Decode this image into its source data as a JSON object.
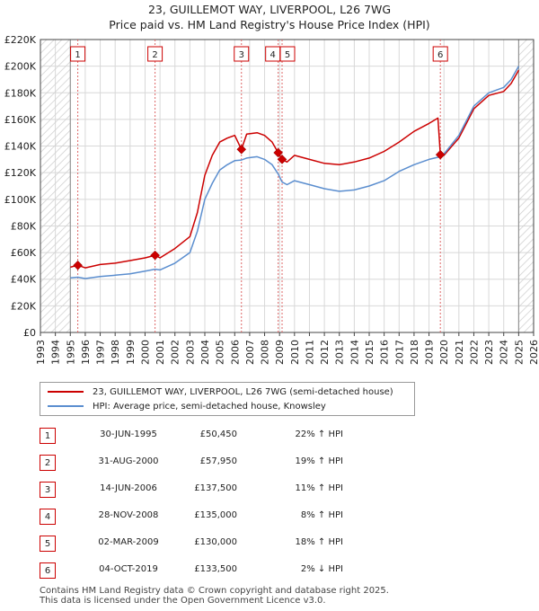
{
  "title_line1": "23, GUILLEMOT WAY, LIVERPOOL, L26 7WG",
  "title_line2": "Price paid vs. HM Land Registry's House Price Index (HPI)",
  "colors": {
    "property": "#cc0000",
    "hpi": "#5b8ecf",
    "marker_line": "#dd6666",
    "grid": "#d8d8d8"
  },
  "chart_data": {
    "type": "line",
    "xlim": [
      1993,
      2026
    ],
    "ylim": [
      0,
      220000
    ],
    "y_ticks": [
      {
        "value": 0,
        "label": "£0"
      },
      {
        "value": 20000,
        "label": "£20K"
      },
      {
        "value": 40000,
        "label": "£40K"
      },
      {
        "value": 60000,
        "label": "£60K"
      },
      {
        "value": 80000,
        "label": "£80K"
      },
      {
        "value": 100000,
        "label": "£100K"
      },
      {
        "value": 120000,
        "label": "£120K"
      },
      {
        "value": 140000,
        "label": "£140K"
      },
      {
        "value": 160000,
        "label": "£160K"
      },
      {
        "value": 180000,
        "label": "£180K"
      },
      {
        "value": 200000,
        "label": "£200K"
      },
      {
        "value": 220000,
        "label": "£220K"
      }
    ],
    "x_ticks": [
      "1993",
      "1994",
      "1995",
      "1996",
      "1997",
      "1998",
      "1999",
      "2000",
      "2001",
      "2002",
      "2003",
      "2004",
      "2005",
      "2006",
      "2007",
      "2008",
      "2009",
      "2010",
      "2011",
      "2012",
      "2013",
      "2014",
      "2015",
      "2016",
      "2017",
      "2018",
      "2019",
      "2020",
      "2021",
      "2022",
      "2023",
      "2024",
      "2025",
      "2026"
    ],
    "hatched_before": 1995.0,
    "hatched_after": 2025.0,
    "series": [
      {
        "name": "23, GUILLEMOT WAY, LIVERPOOL, L26 7WG (semi-detached house)",
        "points": [
          [
            1995.0,
            49000
          ],
          [
            1995.5,
            50450
          ],
          [
            1996,
            48500
          ],
          [
            1997,
            51000
          ],
          [
            1998,
            52000
          ],
          [
            1999,
            54000
          ],
          [
            2000,
            56000
          ],
          [
            2000.67,
            57950
          ],
          [
            2001,
            56000
          ],
          [
            2002,
            63000
          ],
          [
            2003,
            72000
          ],
          [
            2003.5,
            90000
          ],
          [
            2004,
            118000
          ],
          [
            2004.5,
            133000
          ],
          [
            2005,
            143000
          ],
          [
            2005.5,
            146000
          ],
          [
            2006,
            148000
          ],
          [
            2006.45,
            137500
          ],
          [
            2006.8,
            149000
          ],
          [
            2007.5,
            150000
          ],
          [
            2008,
            148000
          ],
          [
            2008.5,
            143000
          ],
          [
            2008.91,
            135000
          ],
          [
            2009.17,
            130000
          ],
          [
            2009.5,
            128000
          ],
          [
            2010,
            133000
          ],
          [
            2011,
            130000
          ],
          [
            2012,
            127000
          ],
          [
            2013,
            126000
          ],
          [
            2014,
            128000
          ],
          [
            2015,
            131000
          ],
          [
            2016,
            136000
          ],
          [
            2017,
            143000
          ],
          [
            2018,
            151000
          ],
          [
            2019,
            157000
          ],
          [
            2019.6,
            161000
          ],
          [
            2019.76,
            133500
          ],
          [
            2020,
            133000
          ],
          [
            2021,
            146000
          ],
          [
            2022,
            168000
          ],
          [
            2023,
            178000
          ],
          [
            2024,
            181000
          ],
          [
            2024.5,
            187000
          ],
          [
            2025,
            197000
          ]
        ]
      },
      {
        "name": "HPI: Average price, semi-detached house, Knowsley",
        "points": [
          [
            1995.0,
            41000
          ],
          [
            1995.5,
            41500
          ],
          [
            1996,
            40500
          ],
          [
            1997,
            42000
          ],
          [
            1998,
            43000
          ],
          [
            1999,
            44000
          ],
          [
            2000,
            46000
          ],
          [
            2000.67,
            47500
          ],
          [
            2001,
            47000
          ],
          [
            2002,
            52000
          ],
          [
            2003,
            60000
          ],
          [
            2003.5,
            76000
          ],
          [
            2004,
            100000
          ],
          [
            2004.5,
            112000
          ],
          [
            2005,
            122000
          ],
          [
            2005.5,
            126000
          ],
          [
            2006,
            129000
          ],
          [
            2006.45,
            129500
          ],
          [
            2006.8,
            131000
          ],
          [
            2007.5,
            132000
          ],
          [
            2008,
            130000
          ],
          [
            2008.5,
            126000
          ],
          [
            2008.91,
            119000
          ],
          [
            2009.17,
            113000
          ],
          [
            2009.5,
            111000
          ],
          [
            2010,
            114000
          ],
          [
            2011,
            111000
          ],
          [
            2012,
            108000
          ],
          [
            2013,
            106000
          ],
          [
            2014,
            107000
          ],
          [
            2015,
            110000
          ],
          [
            2016,
            114000
          ],
          [
            2017,
            121000
          ],
          [
            2018,
            126000
          ],
          [
            2019,
            130000
          ],
          [
            2019.76,
            132000
          ],
          [
            2020,
            134000
          ],
          [
            2021,
            148000
          ],
          [
            2022,
            170000
          ],
          [
            2023,
            180000
          ],
          [
            2024,
            184000
          ],
          [
            2024.5,
            190000
          ],
          [
            2025,
            200000
          ]
        ]
      }
    ],
    "sales": [
      {
        "id": "1",
        "x": 1995.5,
        "price": 50450
      },
      {
        "id": "2",
        "x": 2000.67,
        "price": 57950
      },
      {
        "id": "3",
        "x": 2006.45,
        "price": 137500
      },
      {
        "id": "4",
        "x": 2008.91,
        "price": 135000
      },
      {
        "id": "5",
        "x": 2009.17,
        "price": 130000
      },
      {
        "id": "6",
        "x": 2019.76,
        "price": 133500
      }
    ]
  },
  "legend": {
    "property_label": "23, GUILLEMOT WAY, LIVERPOOL, L26 7WG (semi-detached house)",
    "hpi_label": "HPI: Average price, semi-detached house, Knowsley"
  },
  "sales_table": [
    {
      "num": "1",
      "date": "30-JUN-1995",
      "price": "£50,450",
      "hpi": "22% ↑ HPI"
    },
    {
      "num": "2",
      "date": "31-AUG-2000",
      "price": "£57,950",
      "hpi": "19% ↑ HPI"
    },
    {
      "num": "3",
      "date": "14-JUN-2006",
      "price": "£137,500",
      "hpi": "11% ↑ HPI"
    },
    {
      "num": "4",
      "date": "28-NOV-2008",
      "price": "£135,000",
      "hpi": "8% ↑ HPI"
    },
    {
      "num": "5",
      "date": "02-MAR-2009",
      "price": "£130,000",
      "hpi": "18% ↑ HPI"
    },
    {
      "num": "6",
      "date": "04-OCT-2019",
      "price": "£133,500",
      "hpi": "2% ↓ HPI"
    }
  ],
  "footer_line1": "Contains HM Land Registry data © Crown copyright and database right 2025.",
  "footer_line2": "This data is licensed under the Open Government Licence v3.0."
}
